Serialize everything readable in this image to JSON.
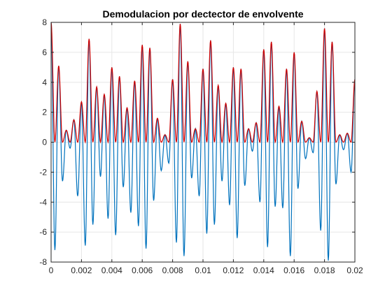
{
  "chart_data": {
    "type": "line",
    "title": "Demodulacion por dectector de envolvente",
    "xlabel": "",
    "ylabel": "",
    "xlim": [
      0,
      0.02
    ],
    "ylim": [
      -8,
      8
    ],
    "grid": true,
    "x_ticks": [
      0,
      0.002,
      0.004,
      0.006,
      0.008,
      0.01,
      0.012,
      0.014,
      0.016,
      0.018,
      0.02
    ],
    "x_tick_labels": [
      "0",
      "0.002",
      "0.004",
      "0.006",
      "0.008",
      "0.01",
      "0.012",
      "0.014",
      "0.016",
      "0.018",
      "0.02"
    ],
    "y_ticks": [
      -8,
      -6,
      -4,
      -2,
      0,
      2,
      4,
      6,
      8
    ],
    "y_tick_labels": [
      "-8",
      "-6",
      "-4",
      "-2",
      "0",
      "2",
      "4",
      "6",
      "8"
    ],
    "colors": {
      "signal": "#0072BD",
      "envelope": "#D00000",
      "grid": "#e6e6e6",
      "axis": "#262626"
    },
    "series": [
      {
        "role": "signal",
        "x": [
          0,
          0.00025,
          0.0005,
          0.00075,
          0.001,
          0.00125,
          0.0015,
          0.00175,
          0.002,
          0.00225,
          0.0025,
          0.00275,
          0.003,
          0.00325,
          0.0035,
          0.00375,
          0.004,
          0.00425,
          0.0045,
          0.00475,
          0.005,
          0.00525,
          0.0055,
          0.00575,
          0.006,
          0.00625,
          0.0065,
          0.00675,
          0.007,
          0.00725,
          0.0075,
          0.00775,
          0.008,
          0.00825,
          0.0085,
          0.00875,
          0.009,
          0.00925,
          0.0095,
          0.00975,
          0.01,
          0.01025,
          0.0105,
          0.01075,
          0.011,
          0.01125,
          0.0115,
          0.01175,
          0.012,
          0.01225,
          0.0125,
          0.01275,
          0.013,
          0.01325,
          0.0135,
          0.01375,
          0.014,
          0.01425,
          0.0145,
          0.01475,
          0.015,
          0.01525,
          0.0155,
          0.01575,
          0.016,
          0.01625,
          0.0165,
          0.01675,
          0.017,
          0.01725,
          0.0175,
          0.01775,
          0.018,
          0.01825,
          0.0185,
          0.01875,
          0.019,
          0.01925,
          0.0195,
          0.01975,
          0.02
        ],
        "y": [
          8.0,
          -7.2,
          5.1,
          -2.6,
          0.8,
          -0.4,
          1.5,
          -3.6,
          2.7,
          -6.9,
          6.9,
          -5.5,
          3.7,
          -2.3,
          3.2,
          -5.1,
          5.0,
          -6.2,
          4.4,
          -3.0,
          2.3,
          -4.7,
          4.1,
          -5.6,
          6.5,
          -7.1,
          6.3,
          -3.9,
          1.6,
          -1.9,
          0.5,
          -1.4,
          4.2,
          -6.7,
          7.9,
          -7.6,
          5.4,
          -2.4,
          0.9,
          -3.6,
          4.9,
          -6.1,
          6.8,
          -5.5,
          3.8,
          -2.6,
          2.6,
          -4.2,
          5.0,
          -6.4,
          4.9,
          -2.9,
          0.9,
          -0.6,
          1.3,
          -4.0,
          6.2,
          -7.0,
          6.7,
          -4.3,
          2.4,
          -4.4,
          4.9,
          -7.6,
          6.0,
          -3.1,
          1.4,
          -1.1,
          0.3,
          -0.7,
          3.4,
          -5.9,
          7.6,
          -7.9,
          6.7,
          -2.8,
          0.5,
          -0.5,
          0.6,
          -2.0,
          4.2
        ]
      },
      {
        "role": "envelope",
        "x": [
          0,
          0.00025,
          0.0005,
          0.00075,
          0.001,
          0.00125,
          0.0015,
          0.00175,
          0.002,
          0.00225,
          0.0025,
          0.00275,
          0.003,
          0.00325,
          0.0035,
          0.00375,
          0.004,
          0.00425,
          0.0045,
          0.00475,
          0.005,
          0.00525,
          0.0055,
          0.00575,
          0.006,
          0.00625,
          0.0065,
          0.00675,
          0.007,
          0.00725,
          0.0075,
          0.00775,
          0.008,
          0.00825,
          0.0085,
          0.00875,
          0.009,
          0.00925,
          0.0095,
          0.00975,
          0.01,
          0.01025,
          0.0105,
          0.01075,
          0.011,
          0.01125,
          0.0115,
          0.01175,
          0.012,
          0.01225,
          0.0125,
          0.01275,
          0.013,
          0.01325,
          0.0135,
          0.01375,
          0.014,
          0.01425,
          0.0145,
          0.01475,
          0.015,
          0.01525,
          0.0155,
          0.01575,
          0.016,
          0.01625,
          0.0165,
          0.01675,
          0.017,
          0.01725,
          0.0175,
          0.01775,
          0.018,
          0.01825,
          0.0185,
          0.01875,
          0.019,
          0.01925,
          0.0195,
          0.01975,
          0.02
        ],
        "y": [
          8.0,
          0,
          5.1,
          0,
          0.8,
          0,
          1.5,
          0,
          2.7,
          0,
          6.9,
          0,
          3.7,
          0,
          3.2,
          0,
          5.0,
          0,
          4.4,
          0,
          2.3,
          0,
          4.1,
          0,
          6.5,
          0,
          6.3,
          0,
          1.6,
          0,
          0.5,
          0,
          4.2,
          0,
          7.9,
          0,
          5.4,
          0,
          0.9,
          0,
          4.9,
          0,
          6.8,
          0,
          3.8,
          0,
          2.6,
          0,
          5.0,
          0,
          4.9,
          0,
          0.9,
          0,
          1.3,
          0,
          6.2,
          0,
          6.7,
          0,
          2.4,
          0,
          4.9,
          0,
          6.0,
          0,
          1.4,
          0,
          0.3,
          0,
          3.4,
          0,
          7.6,
          0,
          6.7,
          0,
          0.5,
          0,
          0.6,
          0,
          4.2
        ]
      }
    ]
  }
}
